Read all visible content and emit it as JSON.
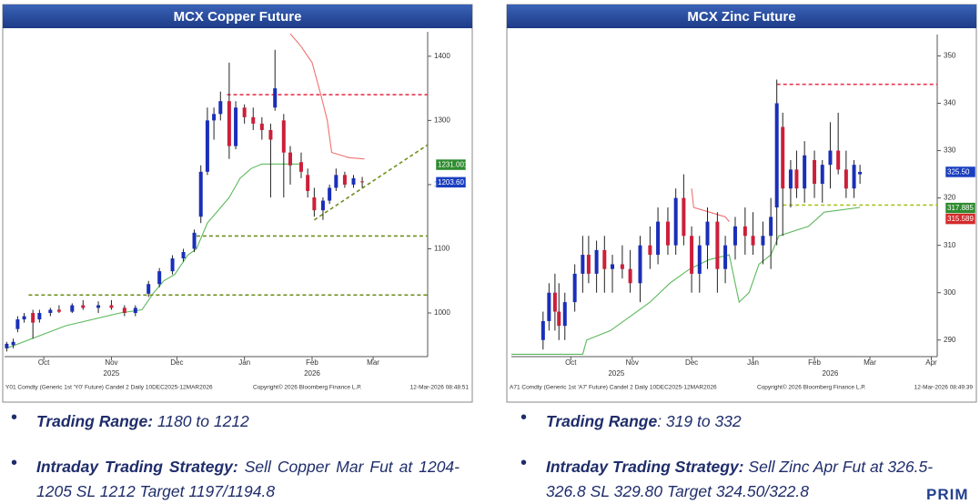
{
  "chart_data": [
    {
      "type": "candlestick",
      "title": "MCX Copper Future",
      "xlim": [
        -18,
        176
      ],
      "ylim": [
        932,
        1438
      ],
      "xticks": [
        {
          "value": 0,
          "label": "Oct"
        },
        {
          "value": 31,
          "label": "Nov"
        },
        {
          "value": 61,
          "label": "Dec"
        },
        {
          "value": 92,
          "label": "Jan"
        },
        {
          "value": 123,
          "label": "Feb"
        },
        {
          "value": 151,
          "label": "Mar"
        }
      ],
      "year_labels": [
        {
          "value": 31,
          "label": "2025"
        },
        {
          "value": 123,
          "label": "2026"
        }
      ],
      "yticks": [
        1000,
        1100,
        1200,
        1300,
        1400
      ],
      "up_color": "#1a2fb8",
      "down_color": "#cc1f3a",
      "x": [
        -17,
        -14,
        -12,
        -9,
        -5,
        -2,
        3,
        7,
        13,
        18,
        25,
        31,
        37,
        42,
        48,
        53,
        59,
        64,
        69,
        72,
        75,
        78,
        81,
        85,
        88,
        92,
        96,
        100,
        104,
        106,
        110,
        113,
        118,
        121,
        124,
        128,
        131,
        134,
        138,
        142,
        146
      ],
      "open": [
        945,
        950,
        975,
        990,
        1000,
        990,
        1000,
        1005,
        1002,
        1012,
        1008,
        1012,
        1008,
        1000,
        1030,
        1045,
        1065,
        1085,
        1100,
        1150,
        1220,
        1300,
        1310,
        1330,
        1260,
        1320,
        1305,
        1295,
        1285,
        1320,
        1300,
        1250,
        1235,
        1215,
        1180,
        1160,
        1175,
        1195,
        1215,
        1200,
        1205
      ],
      "high": [
        955,
        960,
        995,
        1000,
        1005,
        1005,
        1008,
        1012,
        1015,
        1020,
        1018,
        1020,
        1012,
        1012,
        1050,
        1070,
        1090,
        1100,
        1130,
        1230,
        1320,
        1320,
        1345,
        1390,
        1330,
        1325,
        1320,
        1305,
        1295,
        1410,
        1310,
        1260,
        1250,
        1225,
        1195,
        1180,
        1200,
        1225,
        1220,
        1215,
        1212
      ],
      "low": [
        940,
        945,
        970,
        985,
        960,
        985,
        995,
        1000,
        1000,
        1005,
        1000,
        1005,
        995,
        995,
        1025,
        1040,
        1060,
        1080,
        1095,
        1140,
        1215,
        1270,
        1300,
        1240,
        1255,
        1295,
        1285,
        1270,
        1180,
        1315,
        1180,
        1200,
        1210,
        1180,
        1150,
        1145,
        1170,
        1190,
        1195,
        1195,
        1195
      ],
      "close": [
        952,
        955,
        990,
        995,
        985,
        1000,
        1005,
        1002,
        1012,
        1008,
        1012,
        1008,
        1000,
        1008,
        1045,
        1065,
        1085,
        1095,
        1125,
        1220,
        1300,
        1310,
        1330,
        1260,
        1320,
        1305,
        1295,
        1285,
        1270,
        1350,
        1250,
        1230,
        1220,
        1190,
        1160,
        1175,
        1195,
        1215,
        1200,
        1210,
        1203.6
      ],
      "overlays": [
        {
          "x": [
            -17,
            10,
            35,
            45,
            50,
            55,
            60,
            66,
            70,
            75,
            80,
            85,
            90,
            95,
            100,
            118
          ],
          "values": [
            945,
            980,
            1000,
            1005,
            1030,
            1050,
            1060,
            1090,
            1100,
            1140,
            1160,
            1180,
            1210,
            1225,
            1232,
            1232
          ],
          "color": "#5cb85c",
          "dashed": false
        },
        {
          "x": [
            113,
            118,
            123,
            127,
            130,
            132,
            140,
            147
          ],
          "values": [
            1435,
            1415,
            1390,
            1340,
            1300,
            1250,
            1242,
            1240
          ],
          "color": "#f07070",
          "dashed": false
        },
        {
          "x": [
            84,
            176
          ],
          "values": [
            1340,
            1340
          ],
          "color": "#e8364f",
          "dashed": true
        },
        {
          "x": [
            70,
            176
          ],
          "values": [
            1120,
            1120
          ],
          "color": "#6f8f1f",
          "dashed": true
        },
        {
          "x": [
            -7,
            176
          ],
          "values": [
            1028,
            1028
          ],
          "color": "#6f8f1f",
          "dashed": true
        },
        {
          "x": [
            124,
            176
          ],
          "values": [
            1145,
            1262
          ],
          "color": "#6f8f1f",
          "dashed": true
        }
      ],
      "price_tags": [
        {
          "value": 1231.001,
          "label": "1231.001",
          "color": "#2e8b2e"
        },
        {
          "value": 1203.6,
          "label": "1203.60",
          "color": "#1a3fc0"
        }
      ],
      "source": "Y01 Comdty (Generic 1st 'Y0' Future) Candel 2 Daily 10DEC2025-12MAR2026",
      "copyright": "Copyright© 2026 Bloomberg Finance L.P.",
      "timestamp": "12-Mar-2026 08:48:51"
    },
    {
      "type": "candlestick",
      "title": "MCX Zinc Future",
      "xlim": [
        -30,
        185
      ],
      "ylim": [
        286.5,
        354.5
      ],
      "xticks": [
        {
          "value": 0,
          "label": "Oct"
        },
        {
          "value": 31,
          "label": "Nov"
        },
        {
          "value": 61,
          "label": "Dec"
        },
        {
          "value": 92,
          "label": "Jan"
        },
        {
          "value": 123,
          "label": "Feb"
        },
        {
          "value": 151,
          "label": "Mar"
        },
        {
          "value": 182,
          "label": "Apr"
        }
      ],
      "year_labels": [
        {
          "value": 23,
          "label": "2025"
        },
        {
          "value": 131,
          "label": "2026"
        }
      ],
      "yticks": [
        290,
        300,
        310,
        320,
        330,
        340,
        350
      ],
      "up_color": "#1a2fb8",
      "down_color": "#cc1f3a",
      "x": [
        -14,
        -11,
        -8,
        -6,
        -3,
        2,
        6,
        9,
        13,
        17,
        21,
        26,
        30,
        35,
        40,
        44,
        49,
        53,
        57,
        61,
        65,
        69,
        74,
        78,
        83,
        88,
        92,
        97,
        101,
        104,
        107,
        111,
        114,
        118,
        123,
        127,
        131,
        135,
        139,
        143,
        146
      ],
      "open": [
        290,
        294,
        300,
        296,
        293,
        298,
        304,
        308,
        304,
        309,
        305,
        306,
        305,
        302,
        310,
        308,
        315,
        310,
        320,
        312,
        304,
        310,
        315,
        305,
        310,
        314,
        312,
        310,
        312,
        318,
        335,
        322,
        326,
        322,
        328,
        323,
        327,
        330,
        326,
        322,
        325
      ],
      "high": [
        296,
        302,
        304,
        302,
        300,
        306,
        312,
        312,
        311,
        312,
        308,
        310,
        309,
        312,
        314,
        318,
        318,
        322,
        325,
        314,
        312,
        318,
        317,
        312,
        316,
        318,
        317,
        315,
        320,
        345,
        338,
        328,
        330,
        332,
        330,
        328,
        336,
        338,
        330,
        328,
        327
      ],
      "low": [
        288,
        292,
        292,
        290,
        290,
        296,
        300,
        302,
        300,
        300,
        300,
        303,
        300,
        298,
        305,
        306,
        308,
        308,
        310,
        300,
        300,
        305,
        300,
        302,
        307,
        308,
        308,
        306,
        305,
        310,
        312,
        318,
        320,
        319,
        320,
        319,
        322,
        325,
        320,
        320,
        323
      ],
      "close": [
        294,
        300,
        296,
        293,
        298,
        304,
        308,
        304,
        309,
        305,
        306,
        305,
        302,
        310,
        308,
        315,
        310,
        320,
        312,
        304,
        310,
        315,
        305,
        310,
        314,
        312,
        310,
        312,
        316,
        340,
        322,
        326,
        322,
        329,
        323,
        327,
        330,
        326,
        322,
        327,
        325.5
      ],
      "overlays": [
        {
          "x": [
            -30,
            6,
            8,
            20,
            30,
            40,
            50,
            60,
            70,
            80,
            85,
            90,
            95,
            101,
            105,
            120,
            128,
            146
          ],
          "values": [
            287,
            287,
            290,
            292,
            295,
            298,
            302,
            305,
            307,
            308,
            298,
            300,
            306,
            308,
            312,
            314,
            317,
            318
          ],
          "color": "#5cb85c",
          "dashed": false
        },
        {
          "x": [
            61,
            62,
            70,
            78,
            80
          ],
          "values": [
            322,
            318,
            317,
            316,
            315
          ],
          "color": "#f07070",
          "dashed": false
        },
        {
          "x": [
            104,
            185
          ],
          "values": [
            344,
            344
          ],
          "color": "#e8364f",
          "dashed": true
        },
        {
          "x": [
            107,
            185
          ],
          "values": [
            318.5,
            318.5
          ],
          "color": "#a8c420",
          "dashed": true
        }
      ],
      "price_tags": [
        {
          "value": 325.5,
          "label": "325.50",
          "color": "#1a3fc0"
        },
        {
          "value": 317.885,
          "label": "317.885",
          "color": "#2e8b2e"
        },
        {
          "value": 315.589,
          "label": "315.589",
          "color": "#d42a2a"
        }
      ],
      "source": "A71 Comdty (Generic 1st 'A7' Future) Candel 2 Daily 10DEC2025-12MAR2026",
      "copyright": "Copyright© 2026 Bloomberg Finance L.P.",
      "timestamp": "12-Mar-2026 08:49:39"
    }
  ],
  "notes": [
    {
      "items": [
        {
          "label": "Trading Range:",
          "text": "1180 to 1212"
        },
        {
          "label": "Intraday Trading Strategy:",
          "text": "Sell Copper Mar Fut at 1204-1205 SL 1212  Target 1197/1194.8"
        }
      ]
    },
    {
      "items": [
        {
          "label": "Trading Range",
          "text": ":  319 to 332"
        },
        {
          "label": "Intraday Trading Strategy:",
          "text": "Sell Zinc Apr Fut at 326.5-326.8 SL 329.80 Target 324.50/322.8"
        }
      ]
    }
  ],
  "brand": "PRIM"
}
